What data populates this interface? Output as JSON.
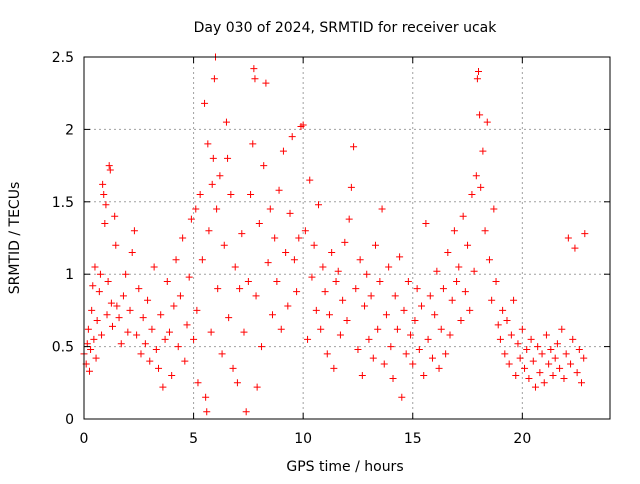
{
  "chart_data": {
    "type": "scatter",
    "title": "Day 030 of 2024, SRMTID for receiver ucak",
    "xlabel": "GPS time / hours",
    "ylabel": "SRMTID / TECUs",
    "xlim": [
      0,
      24
    ],
    "ylim": [
      0,
      2.5
    ],
    "x_ticks": [
      0,
      5,
      10,
      15,
      20
    ],
    "x_tick_labels": [
      "0",
      "5",
      "10",
      "15",
      "20"
    ],
    "y_ticks": [
      0,
      0.5,
      1,
      1.5,
      2,
      2.5
    ],
    "y_tick_labels": [
      "0",
      "0.5",
      "1",
      "1.5",
      "2",
      "2.5"
    ],
    "grid": true,
    "marker": "+",
    "series": [
      {
        "name": "SRMTID",
        "color": "#ff0000",
        "points": [
          [
            0.0,
            0.45
          ],
          [
            0.1,
            0.38
          ],
          [
            0.15,
            0.52
          ],
          [
            0.2,
            0.62
          ],
          [
            0.25,
            0.33
          ],
          [
            0.3,
            0.48
          ],
          [
            0.35,
            0.75
          ],
          [
            0.4,
            0.92
          ],
          [
            0.45,
            0.55
          ],
          [
            0.5,
            1.05
          ],
          [
            0.55,
            0.42
          ],
          [
            0.6,
            0.68
          ],
          [
            0.7,
            0.88
          ],
          [
            0.75,
            1.0
          ],
          [
            0.8,
            0.58
          ],
          [
            0.85,
            1.62
          ],
          [
            0.9,
            1.55
          ],
          [
            0.95,
            1.35
          ],
          [
            1.0,
            1.48
          ],
          [
            1.05,
            0.72
          ],
          [
            1.1,
            0.95
          ],
          [
            1.15,
            1.75
          ],
          [
            1.2,
            1.72
          ],
          [
            1.25,
            0.8
          ],
          [
            1.3,
            0.64
          ],
          [
            1.4,
            1.4
          ],
          [
            1.45,
            1.2
          ],
          [
            1.5,
            0.78
          ],
          [
            1.6,
            0.7
          ],
          [
            1.7,
            0.52
          ],
          [
            1.8,
            0.85
          ],
          [
            1.9,
            1.0
          ],
          [
            2.0,
            0.6
          ],
          [
            2.1,
            0.75
          ],
          [
            2.2,
            1.15
          ],
          [
            2.3,
            1.3
          ],
          [
            2.4,
            0.58
          ],
          [
            2.5,
            0.9
          ],
          [
            2.6,
            0.45
          ],
          [
            2.7,
            0.7
          ],
          [
            2.8,
            0.52
          ],
          [
            2.9,
            0.82
          ],
          [
            3.0,
            0.4
          ],
          [
            3.1,
            0.62
          ],
          [
            3.2,
            1.05
          ],
          [
            3.3,
            0.48
          ],
          [
            3.4,
            0.35
          ],
          [
            3.5,
            0.72
          ],
          [
            3.6,
            0.22
          ],
          [
            3.7,
            0.55
          ],
          [
            3.8,
            0.95
          ],
          [
            3.9,
            0.6
          ],
          [
            4.0,
            0.3
          ],
          [
            4.1,
            0.78
          ],
          [
            4.2,
            1.1
          ],
          [
            4.3,
            0.5
          ],
          [
            4.4,
            0.85
          ],
          [
            4.5,
            1.25
          ],
          [
            4.6,
            0.4
          ],
          [
            4.7,
            0.65
          ],
          [
            4.8,
            0.98
          ],
          [
            4.9,
            1.38
          ],
          [
            5.0,
            0.55
          ],
          [
            5.1,
            1.45
          ],
          [
            5.15,
            0.75
          ],
          [
            5.2,
            0.25
          ],
          [
            5.3,
            1.55
          ],
          [
            5.4,
            1.1
          ],
          [
            5.5,
            2.18
          ],
          [
            5.55,
            0.15
          ],
          [
            5.6,
            0.05
          ],
          [
            5.65,
            1.9
          ],
          [
            5.7,
            1.3
          ],
          [
            5.8,
            0.6
          ],
          [
            5.85,
            1.62
          ],
          [
            5.9,
            1.8
          ],
          [
            5.95,
            2.35
          ],
          [
            6.0,
            2.5
          ],
          [
            6.05,
            1.45
          ],
          [
            6.1,
            0.9
          ],
          [
            6.2,
            1.68
          ],
          [
            6.3,
            0.45
          ],
          [
            6.4,
            1.2
          ],
          [
            6.5,
            2.05
          ],
          [
            6.55,
            1.8
          ],
          [
            6.6,
            0.7
          ],
          [
            6.7,
            1.55
          ],
          [
            6.8,
            0.35
          ],
          [
            6.9,
            1.05
          ],
          [
            7.0,
            0.25
          ],
          [
            7.1,
            0.9
          ],
          [
            7.2,
            1.28
          ],
          [
            7.3,
            0.6
          ],
          [
            7.4,
            0.05
          ],
          [
            7.5,
            0.95
          ],
          [
            7.6,
            1.55
          ],
          [
            7.7,
            1.9
          ],
          [
            7.75,
            2.42
          ],
          [
            7.8,
            2.35
          ],
          [
            7.85,
            0.85
          ],
          [
            7.9,
            0.22
          ],
          [
            8.0,
            1.35
          ],
          [
            8.1,
            0.5
          ],
          [
            8.2,
            1.75
          ],
          [
            8.3,
            2.32
          ],
          [
            8.4,
            1.08
          ],
          [
            8.5,
            1.45
          ],
          [
            8.6,
            0.72
          ],
          [
            8.7,
            1.25
          ],
          [
            8.8,
            0.95
          ],
          [
            8.9,
            1.58
          ],
          [
            9.0,
            0.62
          ],
          [
            9.1,
            1.85
          ],
          [
            9.2,
            1.15
          ],
          [
            9.3,
            0.78
          ],
          [
            9.4,
            1.42
          ],
          [
            9.5,
            1.95
          ],
          [
            9.6,
            1.1
          ],
          [
            9.7,
            0.88
          ],
          [
            9.8,
            1.25
          ],
          [
            9.9,
            2.02
          ],
          [
            10.0,
            2.03
          ],
          [
            10.1,
            1.3
          ],
          [
            10.2,
            0.55
          ],
          [
            10.3,
            1.65
          ],
          [
            10.4,
            0.98
          ],
          [
            10.5,
            1.2
          ],
          [
            10.6,
            0.75
          ],
          [
            10.7,
            1.48
          ],
          [
            10.8,
            0.62
          ],
          [
            10.9,
            1.05
          ],
          [
            11.0,
            0.88
          ],
          [
            11.1,
            0.45
          ],
          [
            11.2,
            0.72
          ],
          [
            11.3,
            1.15
          ],
          [
            11.4,
            0.35
          ],
          [
            11.5,
            0.95
          ],
          [
            11.6,
            1.02
          ],
          [
            11.7,
            0.58
          ],
          [
            11.8,
            0.82
          ],
          [
            11.9,
            1.22
          ],
          [
            12.0,
            0.68
          ],
          [
            12.1,
            1.38
          ],
          [
            12.2,
            1.6
          ],
          [
            12.3,
            1.88
          ],
          [
            12.4,
            0.9
          ],
          [
            12.5,
            0.48
          ],
          [
            12.6,
            1.1
          ],
          [
            12.7,
            0.3
          ],
          [
            12.8,
            0.78
          ],
          [
            12.9,
            1.0
          ],
          [
            13.0,
            0.55
          ],
          [
            13.1,
            0.85
          ],
          [
            13.2,
            0.42
          ],
          [
            13.3,
            1.2
          ],
          [
            13.4,
            0.62
          ],
          [
            13.5,
            0.95
          ],
          [
            13.6,
            1.45
          ],
          [
            13.7,
            0.38
          ],
          [
            13.8,
            0.72
          ],
          [
            13.9,
            1.05
          ],
          [
            14.0,
            0.5
          ],
          [
            14.1,
            0.28
          ],
          [
            14.2,
            0.85
          ],
          [
            14.3,
            0.62
          ],
          [
            14.4,
            1.12
          ],
          [
            14.5,
            0.15
          ],
          [
            14.6,
            0.75
          ],
          [
            14.7,
            0.45
          ],
          [
            14.8,
            0.95
          ],
          [
            14.9,
            0.58
          ],
          [
            15.0,
            0.38
          ],
          [
            15.1,
            0.68
          ],
          [
            15.2,
            0.9
          ],
          [
            15.3,
            0.48
          ],
          [
            15.4,
            0.78
          ],
          [
            15.5,
            0.3
          ],
          [
            15.6,
            1.35
          ],
          [
            15.7,
            0.55
          ],
          [
            15.8,
            0.85
          ],
          [
            15.9,
            0.42
          ],
          [
            16.0,
            0.72
          ],
          [
            16.1,
            1.02
          ],
          [
            16.2,
            0.35
          ],
          [
            16.3,
            0.62
          ],
          [
            16.4,
            0.9
          ],
          [
            16.5,
            0.45
          ],
          [
            16.6,
            1.15
          ],
          [
            16.7,
            0.58
          ],
          [
            16.8,
            0.82
          ],
          [
            16.9,
            1.3
          ],
          [
            17.0,
            0.95
          ],
          [
            17.1,
            1.05
          ],
          [
            17.2,
            0.68
          ],
          [
            17.3,
            1.4
          ],
          [
            17.4,
            0.88
          ],
          [
            17.5,
            1.2
          ],
          [
            17.6,
            0.75
          ],
          [
            17.7,
            1.55
          ],
          [
            17.8,
            1.02
          ],
          [
            17.9,
            1.68
          ],
          [
            17.95,
            2.35
          ],
          [
            18.0,
            2.4
          ],
          [
            18.05,
            2.1
          ],
          [
            18.1,
            1.6
          ],
          [
            18.2,
            1.85
          ],
          [
            18.3,
            1.3
          ],
          [
            18.4,
            2.05
          ],
          [
            18.5,
            1.1
          ],
          [
            18.6,
            0.82
          ],
          [
            18.7,
            1.45
          ],
          [
            18.8,
            0.95
          ],
          [
            18.9,
            0.65
          ],
          [
            19.0,
            0.55
          ],
          [
            19.1,
            0.75
          ],
          [
            19.2,
            0.45
          ],
          [
            19.3,
            0.68
          ],
          [
            19.4,
            0.38
          ],
          [
            19.5,
            0.58
          ],
          [
            19.6,
            0.82
          ],
          [
            19.7,
            0.3
          ],
          [
            19.8,
            0.52
          ],
          [
            19.9,
            0.42
          ],
          [
            20.0,
            0.62
          ],
          [
            20.1,
            0.35
          ],
          [
            20.2,
            0.48
          ],
          [
            20.3,
            0.28
          ],
          [
            20.4,
            0.55
          ],
          [
            20.5,
            0.4
          ],
          [
            20.6,
            0.22
          ],
          [
            20.7,
            0.5
          ],
          [
            20.8,
            0.32
          ],
          [
            20.9,
            0.45
          ],
          [
            21.0,
            0.25
          ],
          [
            21.1,
            0.58
          ],
          [
            21.2,
            0.38
          ],
          [
            21.3,
            0.48
          ],
          [
            21.4,
            0.3
          ],
          [
            21.5,
            0.42
          ],
          [
            21.6,
            0.52
          ],
          [
            21.7,
            0.35
          ],
          [
            21.8,
            0.62
          ],
          [
            21.9,
            0.28
          ],
          [
            22.0,
            0.45
          ],
          [
            22.1,
            1.25
          ],
          [
            22.2,
            0.38
          ],
          [
            22.3,
            0.55
          ],
          [
            22.4,
            1.18
          ],
          [
            22.5,
            0.32
          ],
          [
            22.6,
            0.48
          ],
          [
            22.7,
            0.25
          ],
          [
            22.8,
            0.42
          ],
          [
            22.85,
            1.28
          ]
        ]
      }
    ]
  }
}
